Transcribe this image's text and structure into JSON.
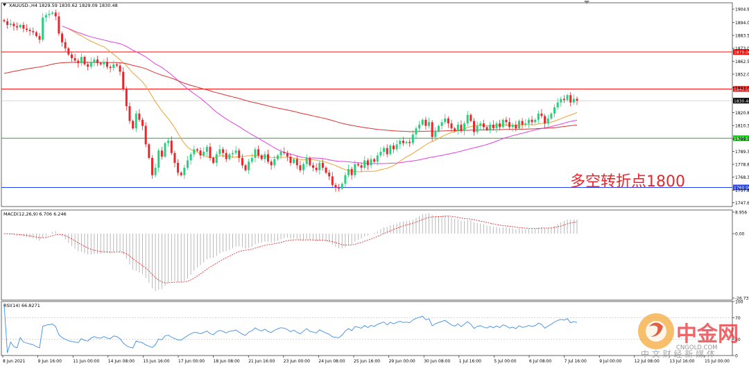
{
  "window": {
    "symbol_header": "XAUUSD-,H4  1829.59 1830.62 1829.09 1830.48"
  },
  "annotation": {
    "text": "多空转折点1800",
    "color": "#e8262b"
  },
  "indicators": {
    "macd_label": "MACD(12,26,9) 6.706 6.246",
    "rsi_label": "RSI(14) 66.8271"
  },
  "watermark": {
    "brand": "中金网",
    "domain": "CNGOLD.COM",
    "tagline": "中 文 财 经 新 媒 体"
  },
  "colors": {
    "bull": "#26d07c",
    "bear": "#e8262b",
    "ma_short": "#f0a030",
    "ma_mid": "#e040e0",
    "ma_long": "#e03030",
    "level_red": "#ff0000",
    "level_green": "#00cc00",
    "level_blue": "#2040ff",
    "rsi_line": "#3c8ce6",
    "macd_signal": "#e03030",
    "macd_hist": "#b0b0b0"
  },
  "chart_data": {
    "type": "candlestick",
    "price_axis": {
      "ylim": [
        1744.5,
        1910
      ],
      "ticks": [
        "1904.90",
        "1894.00",
        "1883.50",
        "1873.00",
        "1862.50",
        "1852.00",
        "1841.00",
        "1820.80",
        "1810.30",
        "1799.30",
        "1789.30",
        "1778.80",
        "1768.30",
        "1757.80",
        "1747.60"
      ]
    },
    "x_ticks": [
      "8 Jun 2021",
      "9 Jun 16:00",
      "11 Jun 00:00",
      "14 Jun 08:00",
      "15 Jun 16:00",
      "17 Jun 00:00",
      "18 Jun 08:00",
      "21 Jun 16:00",
      "23 Jun 00:00",
      "24 Jun 08:00",
      "25 Jun 16:00",
      "29 Jun 00:00",
      "30 Jun 08:00",
      "1 Jul 16:00",
      "5 Jul 00:00",
      "6 Jul 08:00",
      "7 Jul 16:00",
      "9 Jul 00:00",
      "12 Jul 08:00",
      "13 Jul 16:00",
      "15 Jul 00:00"
    ],
    "levels": [
      {
        "label": "1870.00",
        "value": 1870.0,
        "color": "red"
      },
      {
        "label": "1840.00",
        "value": 1840.0,
        "color": "red"
      },
      {
        "label": "1830.48",
        "value": 1830.48,
        "color": "current"
      },
      {
        "label": "1800.00",
        "value": 1800.0,
        "color": "green"
      },
      {
        "label": "1760.00",
        "value": 1760.0,
        "color": "blue"
      }
    ],
    "candles_close": [
      1895,
      1892,
      1893,
      1891,
      1890,
      1892,
      1889,
      1888,
      1887,
      1886,
      1883,
      1880,
      1898,
      1900,
      1901,
      1902,
      1899,
      1885,
      1878,
      1873,
      1868,
      1865,
      1863,
      1861,
      1866,
      1860,
      1858,
      1862,
      1864,
      1861,
      1860,
      1862,
      1858,
      1857,
      1860,
      1859,
      1854,
      1840,
      1826,
      1814,
      1808,
      1820,
      1815,
      1810,
      1795,
      1784,
      1770,
      1776,
      1790,
      1785,
      1796,
      1798,
      1788,
      1780,
      1772,
      1770,
      1776,
      1782,
      1787,
      1791,
      1790,
      1786,
      1789,
      1793,
      1784,
      1780,
      1787,
      1791,
      1788,
      1783,
      1787,
      1788,
      1790,
      1784,
      1778,
      1774,
      1781,
      1784,
      1791,
      1786,
      1783,
      1787,
      1781,
      1778,
      1783,
      1786,
      1789,
      1788,
      1785,
      1780,
      1783,
      1778,
      1774,
      1779,
      1784,
      1778,
      1776,
      1774,
      1780,
      1776,
      1772,
      1769,
      1762,
      1760,
      1759,
      1763,
      1770,
      1775,
      1770,
      1779,
      1778,
      1776,
      1782,
      1778,
      1783,
      1781,
      1786,
      1789,
      1792,
      1787,
      1794,
      1791,
      1795,
      1798,
      1796,
      1797,
      1796,
      1803,
      1808,
      1811,
      1815,
      1810,
      1813,
      1801,
      1806,
      1810,
      1813,
      1816,
      1812,
      1808,
      1806,
      1811,
      1806,
      1812,
      1819,
      1814,
      1805,
      1810,
      1812,
      1809,
      1807,
      1811,
      1808,
      1812,
      1809,
      1815,
      1813,
      1809,
      1811,
      1808,
      1814,
      1811,
      1812,
      1815,
      1813,
      1815,
      1820,
      1818,
      1812,
      1816,
      1820,
      1825,
      1829,
      1832,
      1831,
      1835,
      1829,
      1832,
      1830.48
    ],
    "macd_ylim": [
      -26.731,
      8.956
    ],
    "rsi_ylim": [
      0,
      100
    ],
    "rsi_levels": [
      30,
      70
    ],
    "macd_axis_labels": [
      "8.956",
      "0.00",
      "-26.731"
    ],
    "rsi_axis_labels": [
      "100",
      "70",
      "30",
      "0"
    ]
  }
}
